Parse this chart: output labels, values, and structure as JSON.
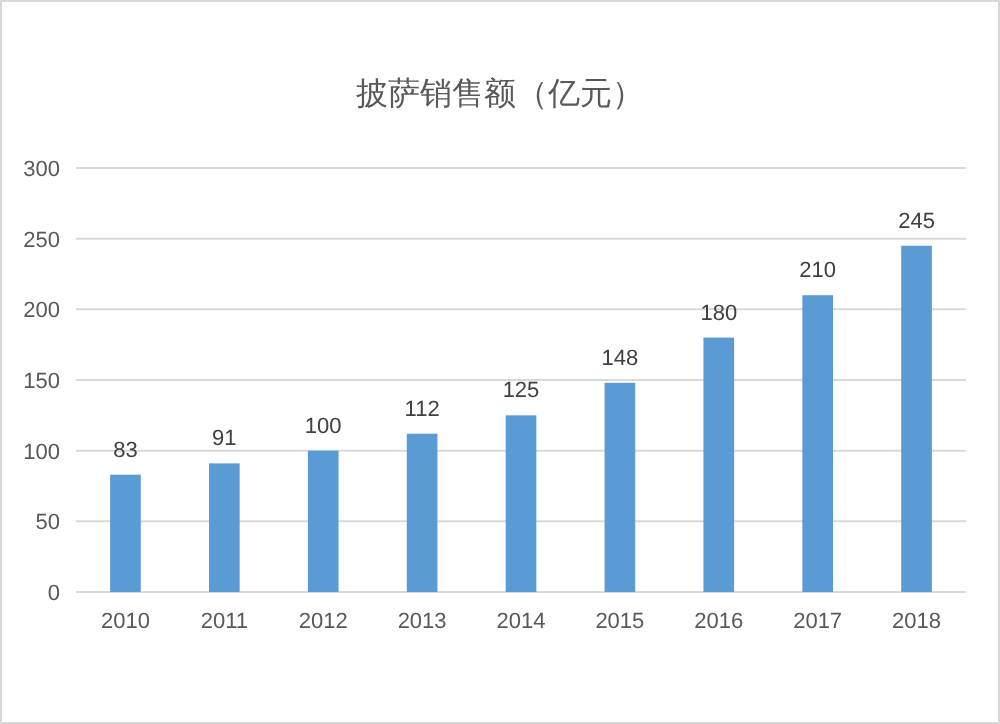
{
  "chart_data": {
    "type": "bar",
    "title": "披萨销售额（亿元）",
    "categories": [
      "2010",
      "2011",
      "2012",
      "2013",
      "2014",
      "2015",
      "2016",
      "2017",
      "2018"
    ],
    "values": [
      83,
      91,
      100,
      112,
      125,
      148,
      180,
      210,
      245
    ],
    "color": "#5b9bd5",
    "ylim": [
      0,
      300
    ],
    "yticks": [
      0,
      50,
      100,
      150,
      200,
      250,
      300
    ],
    "grid": "y",
    "data_labels": true
  }
}
